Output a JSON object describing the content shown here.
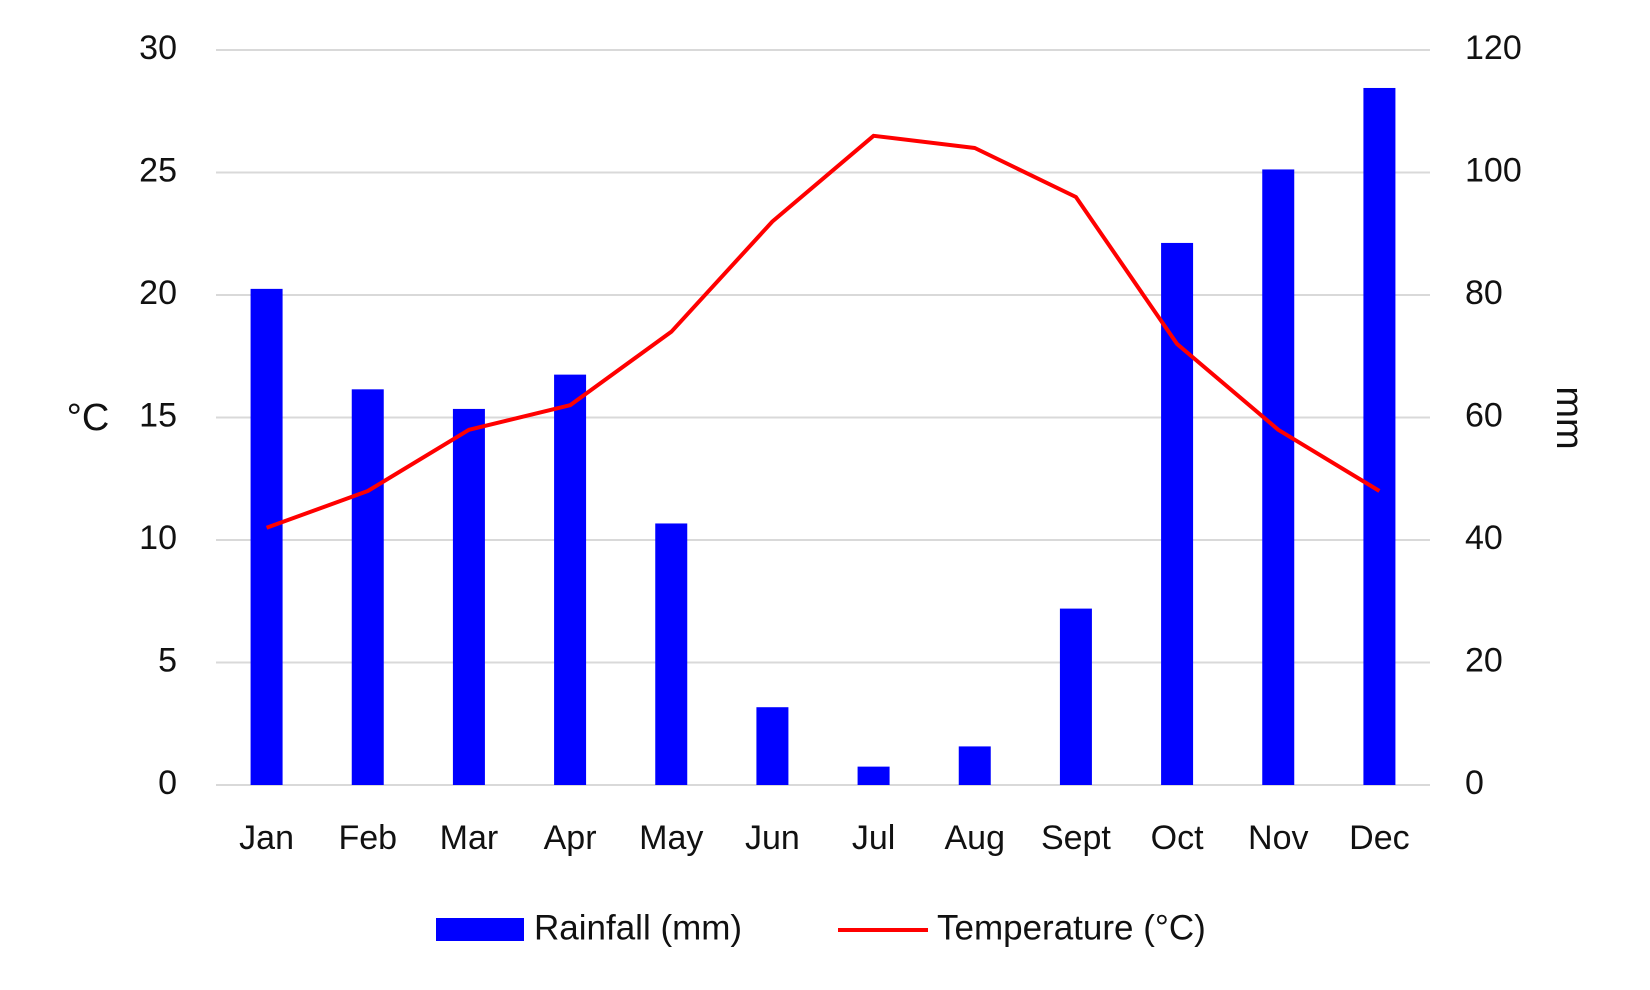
{
  "chart_data": {
    "type": "bar",
    "categories": [
      "Jan",
      "Feb",
      "Mar",
      "Apr",
      "May",
      "Jun",
      "Jul",
      "Aug",
      "Sept",
      "Oct",
      "Nov",
      "Dec"
    ],
    "series": [
      {
        "name": "Rainfall (mm)",
        "type": "bar",
        "axis": "right",
        "color": "#0000ff",
        "values": [
          81,
          64.6,
          61.4,
          67,
          42.7,
          12.7,
          3,
          6.3,
          28.8,
          88.5,
          100.5,
          113.8
        ]
      },
      {
        "name": "Temperature (°C)",
        "type": "line",
        "axis": "left",
        "color": "#ff0000",
        "values": [
          10.5,
          12,
          14.5,
          15.5,
          18.5,
          23,
          26.5,
          26,
          24,
          18,
          14.5,
          12
        ]
      }
    ],
    "y_left": {
      "label": "°C",
      "ylim": [
        0,
        30
      ],
      "ticks": [
        "0",
        "5",
        "10",
        "15",
        "20",
        "25",
        "30"
      ]
    },
    "y_right": {
      "label": "mm",
      "ylim": [
        0,
        120
      ],
      "ticks": [
        "0",
        "20",
        "40",
        "60",
        "80",
        "100",
        "120"
      ]
    },
    "grid": true,
    "legend_position": "bottom",
    "gridline_color": "#d9d9d9"
  }
}
